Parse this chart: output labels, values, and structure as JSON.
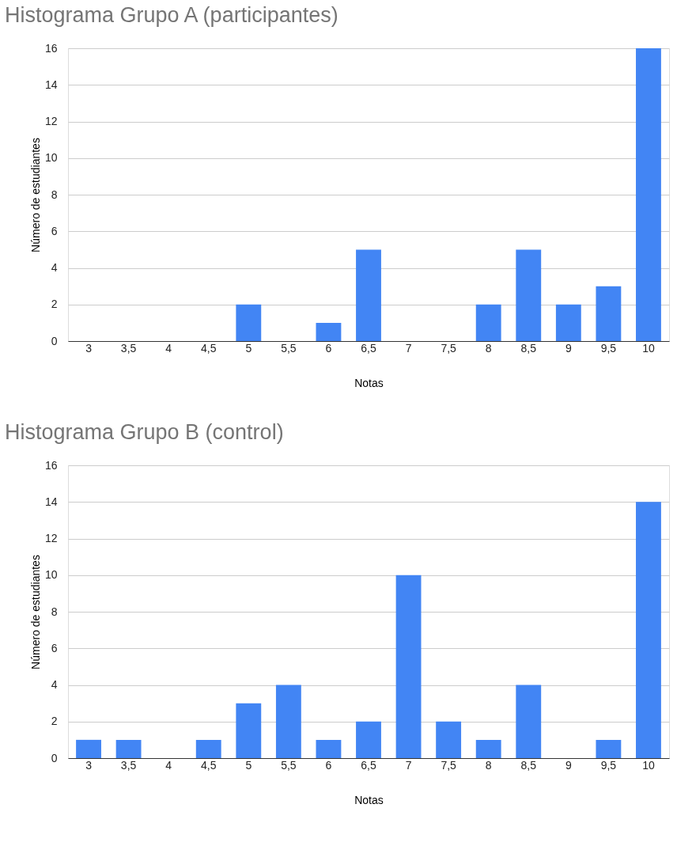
{
  "chart_data": [
    {
      "type": "bar",
      "title": "Histograma Grupo A (participantes)",
      "xlabel": "Notas",
      "ylabel": "Número de estudiantes",
      "categories": [
        "3",
        "3,5",
        "4",
        "4,5",
        "5",
        "5,5",
        "6",
        "6,5",
        "7",
        "7,5",
        "8",
        "8,5",
        "9",
        "9,5",
        "10"
      ],
      "values": [
        0,
        0,
        0,
        0,
        2,
        0,
        1,
        5,
        0,
        0,
        2,
        5,
        2,
        3,
        16
      ],
      "color": "#4285f4",
      "ylim": [
        0,
        16
      ],
      "yticks": [
        0,
        2,
        4,
        6,
        8,
        10,
        12,
        14,
        16
      ],
      "grid": "y"
    },
    {
      "type": "bar",
      "title": "Histograma Grupo B (control)",
      "xlabel": "Notas",
      "ylabel": "Número de estudiantes",
      "categories": [
        "3",
        "3,5",
        "4",
        "4,5",
        "5",
        "5,5",
        "6",
        "6,5",
        "7",
        "7,5",
        "8",
        "8,5",
        "9",
        "9,5",
        "10"
      ],
      "values": [
        1,
        1,
        0,
        1,
        3,
        4,
        1,
        2,
        10,
        2,
        1,
        4,
        0,
        1,
        14
      ],
      "color": "#4285f4",
      "ylim": [
        0,
        16
      ],
      "yticks": [
        0,
        2,
        4,
        6,
        8,
        10,
        12,
        14,
        16
      ],
      "grid": "y"
    }
  ]
}
